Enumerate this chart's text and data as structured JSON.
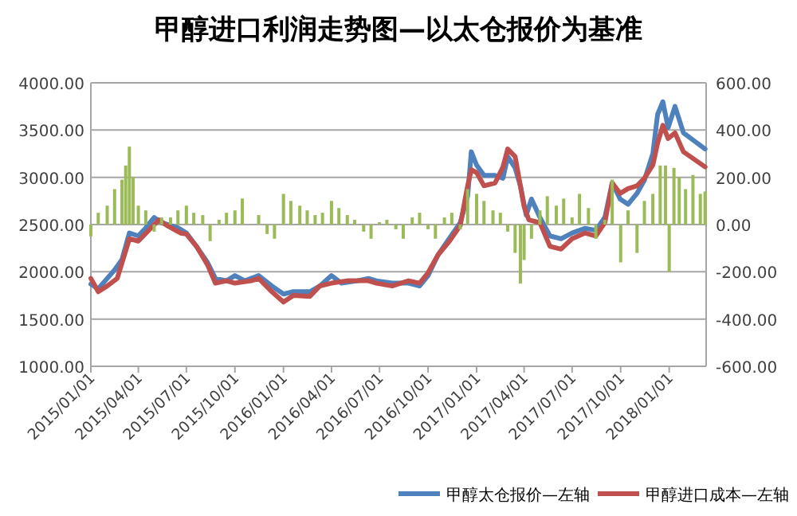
{
  "chart_data": {
    "type": "line",
    "title": "甲醇进口利润走势图—以太仓报价为基准",
    "xlim": [
      "2015-01-01",
      "2018-03-12"
    ],
    "xticks": [
      {
        "value": "2015-01-01",
        "label": "2015/01/01"
      },
      {
        "value": "2015-04-01",
        "label": "2015/04/01"
      },
      {
        "value": "2015-07-01",
        "label": "2015/07/01"
      },
      {
        "value": "2015-10-01",
        "label": "2015/10/01"
      },
      {
        "value": "2016-01-01",
        "label": "2016/01/01"
      },
      {
        "value": "2016-04-01",
        "label": "2016/04/01"
      },
      {
        "value": "2016-07-01",
        "label": "2016/07/01"
      },
      {
        "value": "2016-10-01",
        "label": "2016/10/01"
      },
      {
        "value": "2017-01-01",
        "label": "2017/01/01"
      },
      {
        "value": "2017-04-01",
        "label": "2017/04/01"
      },
      {
        "value": "2017-07-01",
        "label": "2017/07/01"
      },
      {
        "value": "2017-10-01",
        "label": "2017/10/01"
      },
      {
        "value": "2018-01-01",
        "label": "2018/01/01"
      }
    ],
    "ylim": [
      1000,
      4000
    ],
    "yticks": [
      {
        "value": 1000,
        "label": "1000.00"
      },
      {
        "value": 1500,
        "label": "1500.00"
      },
      {
        "value": 2000,
        "label": "2000.00"
      },
      {
        "value": 2500,
        "label": "2500.00"
      },
      {
        "value": 3000,
        "label": "3000.00"
      },
      {
        "value": 3500,
        "label": "3500.00"
      },
      {
        "value": 4000,
        "label": "4000.00"
      }
    ],
    "y2lim": [
      -600,
      600
    ],
    "y2ticks": [
      {
        "value": -600,
        "label": "-600.00"
      },
      {
        "value": -400,
        "label": "-400.00"
      },
      {
        "value": -200,
        "label": "-200.00"
      },
      {
        "value": 0,
        "label": "0.00"
      },
      {
        "value": 200,
        "label": "200.00"
      },
      {
        "value": 400,
        "label": "400.00"
      },
      {
        "value": 600,
        "label": "600.00"
      }
    ],
    "grid": "y",
    "legend": "bottom",
    "marker": "none",
    "line_style": "solid",
    "series": [
      {
        "type": "bar",
        "axis": "y2",
        "color": "#9bbb59",
        "x": [
          "2015-01-01",
          "2015-01-15",
          "2015-02-01",
          "2015-02-15",
          "2015-03-01",
          "2015-03-08",
          "2015-03-15",
          "2015-03-22",
          "2015-04-01",
          "2015-04-15",
          "2015-05-01",
          "2015-05-15",
          "2015-06-01",
          "2015-06-15",
          "2015-07-01",
          "2015-07-15",
          "2015-08-01",
          "2015-08-15",
          "2015-09-01",
          "2015-09-15",
          "2015-10-01",
          "2015-10-15",
          "2015-11-01",
          "2015-11-15",
          "2015-12-01",
          "2015-12-15",
          "2016-01-01",
          "2016-01-15",
          "2016-02-01",
          "2016-02-15",
          "2016-03-01",
          "2016-03-15",
          "2016-04-01",
          "2016-04-15",
          "2016-05-01",
          "2016-05-15",
          "2016-06-01",
          "2016-06-15",
          "2016-07-01",
          "2016-07-15",
          "2016-08-01",
          "2016-08-15",
          "2016-09-01",
          "2016-09-15",
          "2016-10-01",
          "2016-10-15",
          "2016-11-01",
          "2016-11-15",
          "2016-12-01",
          "2016-12-15",
          "2017-01-01",
          "2017-01-15",
          "2017-02-01",
          "2017-02-15",
          "2017-03-01",
          "2017-03-15",
          "2017-03-25",
          "2017-04-01",
          "2017-04-15",
          "2017-05-01",
          "2017-05-15",
          "2017-06-01",
          "2017-06-15",
          "2017-07-01",
          "2017-07-15",
          "2017-08-01",
          "2017-08-15",
          "2017-09-01",
          "2017-09-15",
          "2017-10-01",
          "2017-10-15",
          "2017-11-01",
          "2017-11-15",
          "2017-12-01",
          "2017-12-15",
          "2017-12-25",
          "2018-01-01",
          "2018-01-10",
          "2018-01-20",
          "2018-02-01",
          "2018-02-15",
          "2018-03-01",
          "2018-03-10"
        ],
        "values": [
          -50,
          50,
          80,
          150,
          190,
          250,
          330,
          200,
          80,
          60,
          -30,
          30,
          30,
          60,
          80,
          50,
          40,
          -70,
          20,
          50,
          60,
          110,
          0,
          40,
          -40,
          -60,
          130,
          100,
          80,
          60,
          40,
          50,
          100,
          70,
          40,
          20,
          -30,
          -60,
          10,
          20,
          -20,
          -60,
          30,
          50,
          -20,
          -60,
          30,
          50,
          -20,
          150,
          130,
          100,
          60,
          50,
          -30,
          -120,
          -250,
          -150,
          -60,
          60,
          120,
          80,
          110,
          30,
          130,
          70,
          -60,
          20,
          190,
          -160,
          60,
          -120,
          100,
          130,
          250,
          250,
          -200,
          240,
          200,
          150,
          210,
          130,
          140
        ]
      },
      {
        "name": "甲醇太仓报价—左轴",
        "color": "#4f81bd",
        "x": [
          "2015-01-01",
          "2015-01-15",
          "2015-02-01",
          "2015-02-15",
          "2015-03-01",
          "2015-03-15",
          "2015-04-01",
          "2015-04-15",
          "2015-05-01",
          "2015-05-15",
          "2015-06-01",
          "2015-06-15",
          "2015-07-01",
          "2015-07-20",
          "2015-08-10",
          "2015-08-25",
          "2015-09-15",
          "2015-10-01",
          "2015-10-20",
          "2015-11-15",
          "2015-12-10",
          "2016-01-01",
          "2016-01-20",
          "2016-02-20",
          "2016-03-10",
          "2016-04-01",
          "2016-04-20",
          "2016-05-20",
          "2016-06-10",
          "2016-06-25",
          "2016-07-25",
          "2016-08-25",
          "2016-09-15",
          "2016-10-01",
          "2016-10-20",
          "2016-11-10",
          "2016-12-01",
          "2016-12-15",
          "2016-12-22",
          "2017-01-01",
          "2017-01-15",
          "2017-02-05",
          "2017-02-20",
          "2017-03-01",
          "2017-03-15",
          "2017-03-25",
          "2017-04-05",
          "2017-04-15",
          "2017-05-01",
          "2017-05-20",
          "2017-06-10",
          "2017-07-01",
          "2017-07-25",
          "2017-08-15",
          "2017-09-01",
          "2017-09-15",
          "2017-09-30",
          "2017-10-15",
          "2017-11-01",
          "2017-11-15",
          "2017-12-01",
          "2017-12-10",
          "2017-12-20",
          "2017-12-30",
          "2018-01-12",
          "2018-01-28",
          "2018-03-10"
        ],
        "values": [
          1870,
          1820,
          1930,
          2020,
          2130,
          2410,
          2380,
          2465,
          2575,
          2520,
          2490,
          2465,
          2410,
          2270,
          2100,
          1930,
          1905,
          1960,
          1905,
          1960,
          1850,
          1765,
          1790,
          1790,
          1850,
          1960,
          1880,
          1905,
          1930,
          1905,
          1880,
          1880,
          1850,
          1960,
          2180,
          2350,
          2520,
          2800,
          3270,
          3130,
          3020,
          3020,
          2990,
          3220,
          3100,
          2910,
          2600,
          2770,
          2575,
          2380,
          2350,
          2410,
          2460,
          2440,
          2575,
          2940,
          2770,
          2715,
          2830,
          2970,
          3250,
          3665,
          3800,
          3525,
          3750,
          3470,
          3300
        ]
      },
      {
        "name": "甲醇进口成本—左轴",
        "color": "#c0504d",
        "x": [
          "2015-01-01",
          "2015-01-15",
          "2015-02-01",
          "2015-02-20",
          "2015-03-15",
          "2015-04-01",
          "2015-04-20",
          "2015-05-10",
          "2015-05-25",
          "2015-06-20",
          "2015-07-01",
          "2015-07-20",
          "2015-08-10",
          "2015-08-25",
          "2015-09-15",
          "2015-10-01",
          "2015-11-01",
          "2015-11-15",
          "2015-12-10",
          "2016-01-01",
          "2016-01-20",
          "2016-02-20",
          "2016-03-10",
          "2016-04-01",
          "2016-05-01",
          "2016-06-10",
          "2016-06-25",
          "2016-07-25",
          "2016-08-25",
          "2016-09-15",
          "2016-10-01",
          "2016-10-20",
          "2016-11-10",
          "2016-12-01",
          "2016-12-15",
          "2016-12-22",
          "2017-01-01",
          "2017-01-15",
          "2017-02-05",
          "2017-02-20",
          "2017-03-01",
          "2017-03-15",
          "2017-04-01",
          "2017-04-10",
          "2017-05-01",
          "2017-05-20",
          "2017-06-10",
          "2017-07-01",
          "2017-07-25",
          "2017-08-15",
          "2017-09-01",
          "2017-09-15",
          "2017-09-30",
          "2017-10-15",
          "2017-11-01",
          "2017-11-15",
          "2017-12-01",
          "2017-12-10",
          "2017-12-20",
          "2017-12-30",
          "2018-01-12",
          "2018-01-28",
          "2018-03-10"
        ],
        "values": [
          1930,
          1790,
          1850,
          1930,
          2350,
          2325,
          2435,
          2550,
          2490,
          2410,
          2400,
          2270,
          2075,
          1880,
          1905,
          1880,
          1905,
          1930,
          1790,
          1680,
          1750,
          1740,
          1850,
          1880,
          1905,
          1905,
          1880,
          1850,
          1905,
          1880,
          1990,
          2180,
          2320,
          2490,
          2910,
          3080,
          3050,
          2910,
          2940,
          3110,
          3300,
          3220,
          2690,
          2550,
          2520,
          2270,
          2240,
          2350,
          2410,
          2380,
          2520,
          2940,
          2830,
          2880,
          2910,
          2990,
          3130,
          3360,
          3550,
          3410,
          3470,
          3270,
          3110
        ]
      }
    ]
  }
}
